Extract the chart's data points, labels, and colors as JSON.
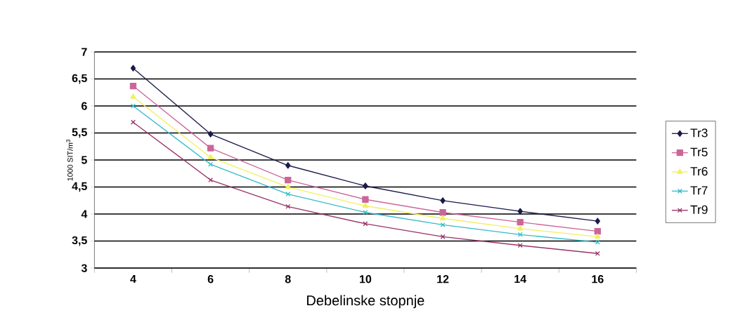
{
  "chart_data": {
    "type": "line",
    "xlabel": "Debelinske stopnje",
    "ylabel": "1000 SIT/m$^{3}$",
    "categories": [
      "4",
      "6",
      "8",
      "10",
      "12",
      "14",
      "16"
    ],
    "series": [
      {
        "name": "Tr3",
        "color": "#1a1a4a",
        "marker": "diamond",
        "values": [
          6.7,
          5.48,
          4.9,
          4.52,
          4.25,
          4.05,
          3.87
        ]
      },
      {
        "name": "Tr5",
        "color": "#cc6699",
        "marker": "square",
        "values": [
          6.37,
          5.22,
          4.63,
          4.27,
          4.03,
          3.85,
          3.68
        ]
      },
      {
        "name": "Tr6",
        "color": "#f0f060",
        "marker": "triangle",
        "values": [
          6.17,
          5.05,
          4.5,
          4.15,
          3.92,
          3.73,
          3.58
        ]
      },
      {
        "name": "Tr7",
        "color": "#33bbcc",
        "marker": "cross",
        "values": [
          6.0,
          4.92,
          4.37,
          4.03,
          3.8,
          3.62,
          3.48
        ]
      },
      {
        "name": "Tr9",
        "color": "#993366",
        "marker": "cross",
        "values": [
          5.7,
          4.63,
          4.14,
          3.82,
          3.58,
          3.42,
          3.27
        ]
      }
    ],
    "ylim": [
      3,
      7
    ],
    "yticks": [
      3,
      {
        "value": 3.5,
        "label": "3,5"
      },
      4,
      {
        "value": 4.5,
        "label": "4,5"
      },
      5,
      {
        "value": 5.5,
        "label": "5,5"
      },
      6,
      {
        "value": 6.5,
        "label": "6,5"
      },
      7
    ],
    "grid": "y",
    "legend": "right",
    "line_style": "solid"
  }
}
